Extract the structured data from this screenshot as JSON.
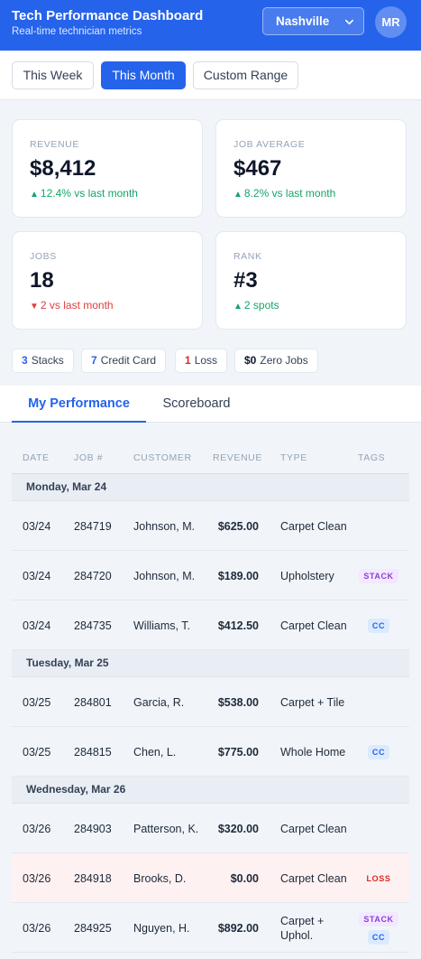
{
  "header": {
    "title": "Tech Performance Dashboard",
    "subtitle": "Real-time technician metrics",
    "location": "Nashville",
    "avatar_initials": "MR",
    "colors": {
      "primary": "#2563eb"
    }
  },
  "range": {
    "buttons": [
      {
        "label": "This Week"
      },
      {
        "label": "This Month",
        "active": true
      },
      {
        "label": "Custom Range"
      }
    ]
  },
  "metrics": [
    {
      "label": "REVENUE",
      "value": "$8,412",
      "delta": "12.4% vs last month",
      "trend": "up"
    },
    {
      "label": "JOB AVERAGE",
      "value": "$467",
      "delta": "8.2% vs last month",
      "trend": "up"
    },
    {
      "label": "JOBS",
      "value": "18",
      "delta": "2 vs last month",
      "trend": "down"
    },
    {
      "label": "RANK",
      "value": "#3",
      "delta": "2 spots",
      "trend": "up"
    }
  ],
  "chips": [
    {
      "count": "3",
      "label": "Stacks"
    },
    {
      "count": "7",
      "label": "Credit Card"
    },
    {
      "count": "1",
      "label": "Loss"
    },
    {
      "count": "$0",
      "label": "Zero Jobs"
    }
  ],
  "tabs": [
    {
      "label": "My Performance",
      "active": true
    },
    {
      "label": "Scoreboard"
    }
  ],
  "table": {
    "headers": [
      "DATE",
      "JOB #",
      "CUSTOMER",
      "REVENUE",
      "TYPE",
      "TAGS"
    ],
    "groups": [
      {
        "day": "Monday, Mar 24",
        "rows": [
          {
            "date": "03/24",
            "job": "284719",
            "customer": "Johnson, M.",
            "revenue": "$625.00",
            "type": "Carpet Clean",
            "tags": []
          },
          {
            "date": "03/24",
            "job": "284720",
            "customer": "Johnson, M.",
            "revenue": "$189.00",
            "type": "Upholstery",
            "tags": [
              "STACK"
            ]
          },
          {
            "date": "03/24",
            "job": "284735",
            "customer": "Williams, T.",
            "revenue": "$412.50",
            "type": "Carpet Clean",
            "tags": [
              "CC"
            ]
          }
        ]
      },
      {
        "day": "Tuesday, Mar 25",
        "rows": [
          {
            "date": "03/25",
            "job": "284801",
            "customer": "Garcia, R.",
            "revenue": "$538.00",
            "type": "Carpet + Tile",
            "tags": []
          },
          {
            "date": "03/25",
            "job": "284815",
            "customer": "Chen, L.",
            "revenue": "$775.00",
            "type": "Whole Home",
            "tags": [
              "CC"
            ]
          }
        ]
      },
      {
        "day": "Wednesday, Mar 26",
        "rows": [
          {
            "date": "03/26",
            "job": "284903",
            "customer": "Patterson, K.",
            "revenue": "$320.00",
            "type": "Carpet Clean",
            "tags": []
          },
          {
            "date": "03/26",
            "job": "284918",
            "customer": "Brooks, D.",
            "revenue": "$0.00",
            "type": "Carpet Clean",
            "tags": [
              "LOSS"
            ],
            "highlight": "loss"
          },
          {
            "date": "03/26",
            "job": "284925",
            "customer": "Nguyen, H.",
            "revenue": "$892.00",
            "type": "Carpet + Uphol.",
            "tags": [
              "STACK",
              "CC"
            ]
          }
        ]
      }
    ]
  }
}
